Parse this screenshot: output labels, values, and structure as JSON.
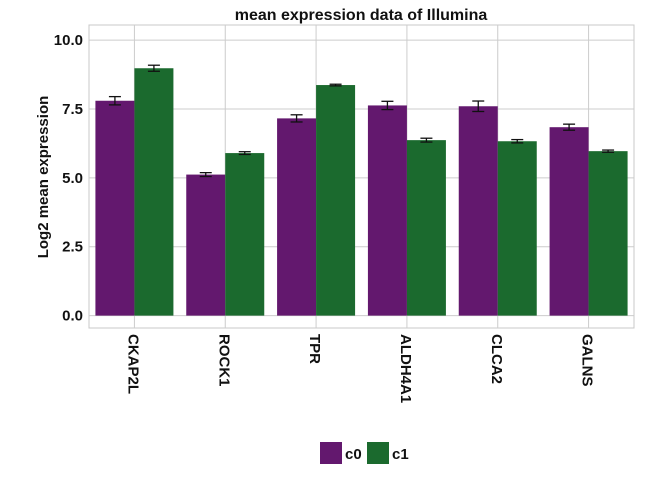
{
  "chart_data": {
    "type": "bar",
    "title": "mean expression data of Illumina",
    "xlabel": "",
    "ylabel": "Log2 mean expression",
    "ylim": [
      -0.45,
      10.55
    ],
    "yticks": [
      0.0,
      2.5,
      5.0,
      7.5,
      10.0
    ],
    "ytick_labels": [
      "0.0",
      "2.5",
      "5.0",
      "7.5",
      "10.0"
    ],
    "categories": [
      "CKAP2L",
      "ROCK1",
      "TPR",
      "ALDH4A1",
      "CLCA2",
      "GALNS"
    ],
    "series": [
      {
        "name": "c0",
        "color": "#63186e",
        "values": [
          7.8,
          5.12,
          7.16,
          7.63,
          7.6,
          6.84
        ],
        "errors": [
          0.15,
          0.07,
          0.13,
          0.15,
          0.19,
          0.11
        ]
      },
      {
        "name": "c1",
        "color": "#1b6a2e",
        "values": [
          8.98,
          5.9,
          8.37,
          6.37,
          6.33,
          5.97
        ],
        "errors": [
          0.11,
          0.05,
          0.03,
          0.07,
          0.06,
          0.04
        ]
      }
    ],
    "grid": true,
    "legend_position": "bottom"
  }
}
